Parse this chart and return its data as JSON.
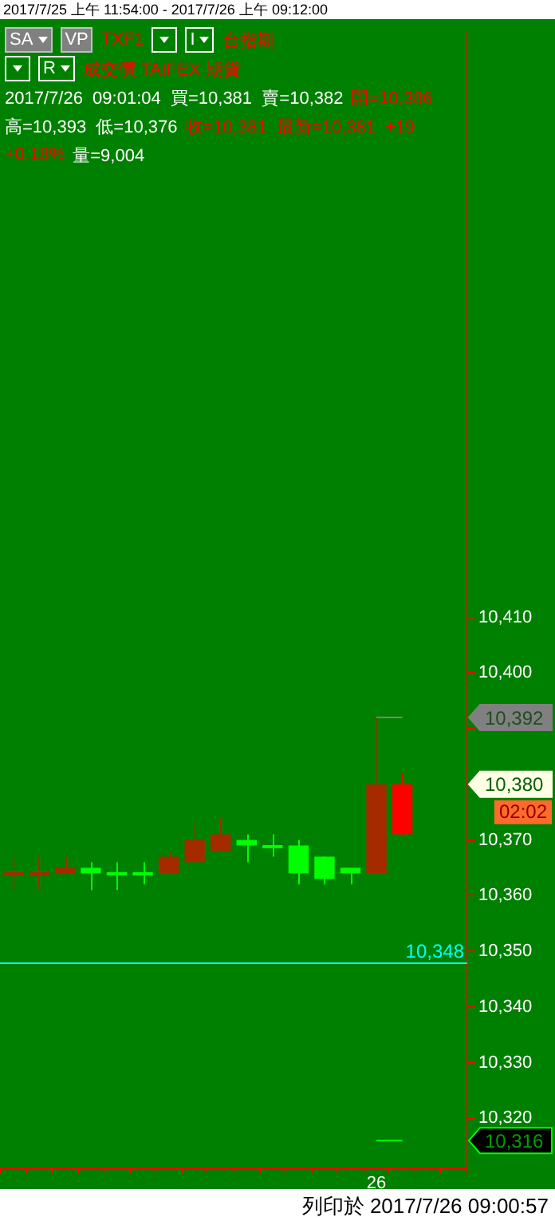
{
  "chart_data": {
    "type": "candlestick",
    "title": "2017/7/25 上午 11:54:00 - 2017/7/26 上午 09:12:00",
    "categories": [
      null,
      null,
      null,
      null,
      null,
      null,
      null,
      null,
      null,
      null,
      null,
      null,
      null,
      null,
      "26",
      null,
      null,
      null
    ],
    "ohlc": [
      [
        10364,
        10367,
        10361,
        10364
      ],
      [
        10364,
        10367,
        10361,
        10364
      ],
      [
        10364,
        10367,
        10364,
        10365
      ],
      [
        10365,
        10366,
        10361,
        10364
      ],
      [
        10364,
        10366,
        10361,
        10364
      ],
      [
        10364,
        10366,
        10362,
        10364
      ],
      [
        10364,
        10368,
        10364,
        10367
      ],
      [
        10366,
        10373,
        10366,
        10370
      ],
      [
        10368,
        10374,
        10368,
        10371
      ],
      [
        10370,
        10371,
        10366,
        10369
      ],
      [
        10369,
        10371,
        10367,
        10369
      ],
      [
        10369,
        10370,
        10362,
        10364
      ],
      [
        10367,
        10367,
        10362,
        10363
      ],
      [
        10365,
        10365,
        10362,
        10364
      ],
      [
        10364,
        10392,
        10364,
        10380
      ],
      [
        10371,
        10382,
        10371,
        10380
      ],
      null,
      null
    ],
    "colors": [
      "#a52a00",
      "#a52a00",
      "#a52a00",
      "#00ff00",
      "#00ff00",
      "#00ff00",
      "#a52a00",
      "#a52a00",
      "#a52a00",
      "#00ff00",
      "#00ff00",
      "#00ff00",
      "#00ff00",
      "#00ff00",
      "#a52a00",
      "#ff0000",
      null,
      null
    ],
    "series": [
      {
        "type": "line",
        "color": "#808080",
        "values": [
          null,
          null,
          null,
          null,
          null,
          null,
          null,
          null,
          null,
          null,
          null,
          null,
          null,
          null,
          10392,
          10392,
          null,
          null
        ],
        "name": null
      },
      {
        "type": "line",
        "color": "#00ff00",
        "values": [
          null,
          null,
          null,
          null,
          null,
          null,
          null,
          null,
          null,
          null,
          null,
          null,
          null,
          null,
          10316,
          10316,
          null,
          null
        ],
        "name": null
      }
    ],
    "ylim": [
      10311,
      10515
    ],
    "yticks": [
      {
        "value": 10320,
        "label": "10,320"
      },
      {
        "value": 10330,
        "label": "10,330"
      },
      {
        "value": 10340,
        "label": "10,340"
      },
      {
        "value": 10350,
        "label": "10,350"
      },
      {
        "value": 10360,
        "label": "10,360"
      },
      {
        "value": 10370,
        "label": "10,370"
      },
      {
        "value": 10380,
        "label": null
      },
      {
        "value": 10390,
        "label": null
      },
      {
        "value": 10400,
        "label": "10,400"
      },
      {
        "value": 10410,
        "label": "10,410"
      }
    ],
    "ref_lines": [
      {
        "axis": "y",
        "value": 10348,
        "label": "10,348",
        "color": "#00ffff"
      }
    ],
    "annotations": [
      "SA",
      "VP",
      "TXF1",
      "I",
      "台指期",
      "R",
      "成交價 TAIFEX 期貨",
      "2017/7/26  09:01:04  買=10,381  賣=10,382",
      "開=10,386",
      "高=10,393  低=10,376",
      "收=10,381  最新=10,381  +19",
      "+0.18%",
      "量=9,004",
      "列印於 2017/7/26 09:00:57",
      "10,380",
      "02:02",
      "10,392",
      "10,316"
    ],
    "legend": false
  }
}
